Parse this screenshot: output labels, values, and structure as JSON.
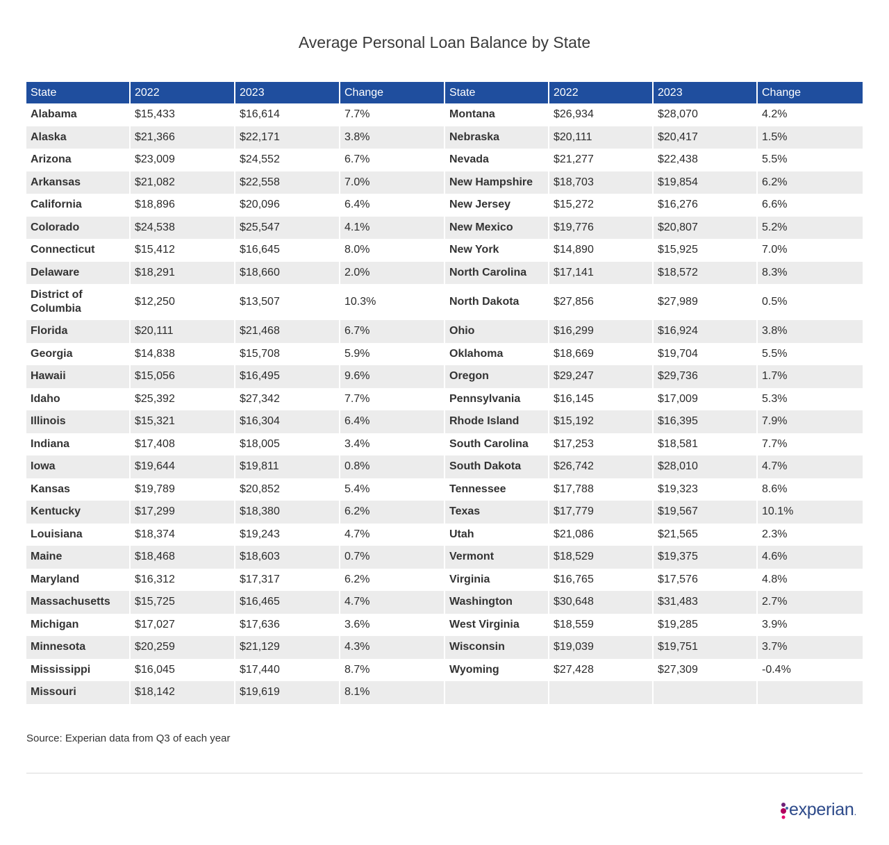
{
  "chart_data": {
    "type": "table",
    "title": "Average Personal Loan Balance by State",
    "columns": [
      "State",
      "2022",
      "2023",
      "Change"
    ],
    "left_rows": [
      [
        "Alabama",
        "$15,433",
        "$16,614",
        "7.7%"
      ],
      [
        "Alaska",
        "$21,366",
        "$22,171",
        "3.8%"
      ],
      [
        "Arizona",
        "$23,009",
        "$24,552",
        "6.7%"
      ],
      [
        "Arkansas",
        "$21,082",
        "$22,558",
        "7.0%"
      ],
      [
        "California",
        "$18,896",
        "$20,096",
        "6.4%"
      ],
      [
        "Colorado",
        "$24,538",
        "$25,547",
        "4.1%"
      ],
      [
        "Connecticut",
        "$15,412",
        "$16,645",
        "8.0%"
      ],
      [
        "Delaware",
        "$18,291",
        "$18,660",
        "2.0%"
      ],
      [
        "District of Columbia",
        "$12,250",
        "$13,507",
        "10.3%"
      ],
      [
        "Florida",
        "$20,111",
        "$21,468",
        "6.7%"
      ],
      [
        "Georgia",
        "$14,838",
        "$15,708",
        "5.9%"
      ],
      [
        "Hawaii",
        "$15,056",
        "$16,495",
        "9.6%"
      ],
      [
        "Idaho",
        "$25,392",
        "$27,342",
        "7.7%"
      ],
      [
        "Illinois",
        "$15,321",
        "$16,304",
        "6.4%"
      ],
      [
        "Indiana",
        "$17,408",
        "$18,005",
        "3.4%"
      ],
      [
        "Iowa",
        "$19,644",
        "$19,811",
        "0.8%"
      ],
      [
        "Kansas",
        "$19,789",
        "$20,852",
        "5.4%"
      ],
      [
        "Kentucky",
        "$17,299",
        "$18,380",
        "6.2%"
      ],
      [
        "Louisiana",
        "$18,374",
        "$19,243",
        "4.7%"
      ],
      [
        "Maine",
        "$18,468",
        "$18,603",
        "0.7%"
      ],
      [
        "Maryland",
        "$16,312",
        "$17,317",
        "6.2%"
      ],
      [
        "Massachusetts",
        "$15,725",
        "$16,465",
        "4.7%"
      ],
      [
        "Michigan",
        "$17,027",
        "$17,636",
        "3.6%"
      ],
      [
        "Minnesota",
        "$20,259",
        "$21,129",
        "4.3%"
      ],
      [
        "Mississippi",
        "$16,045",
        "$17,440",
        "8.7%"
      ],
      [
        "Missouri",
        "$18,142",
        "$19,619",
        "8.1%"
      ]
    ],
    "right_rows": [
      [
        "Montana",
        "$26,934",
        "$28,070",
        "4.2%"
      ],
      [
        "Nebraska",
        "$20,111",
        "$20,417",
        "1.5%"
      ],
      [
        "Nevada",
        "$21,277",
        "$22,438",
        "5.5%"
      ],
      [
        "New Hampshire",
        "$18,703",
        "$19,854",
        "6.2%"
      ],
      [
        "New Jersey",
        "$15,272",
        "$16,276",
        "6.6%"
      ],
      [
        "New Mexico",
        "$19,776",
        "$20,807",
        "5.2%"
      ],
      [
        "New York",
        "$14,890",
        "$15,925",
        "7.0%"
      ],
      [
        "North Carolina",
        "$17,141",
        "$18,572",
        "8.3%"
      ],
      [
        "North Dakota",
        "$27,856",
        "$27,989",
        "0.5%"
      ],
      [
        "Ohio",
        "$16,299",
        "$16,924",
        "3.8%"
      ],
      [
        "Oklahoma",
        "$18,669",
        "$19,704",
        "5.5%"
      ],
      [
        "Oregon",
        "$29,247",
        "$29,736",
        "1.7%"
      ],
      [
        "Pennsylvania",
        "$16,145",
        "$17,009",
        "5.3%"
      ],
      [
        "Rhode Island",
        "$15,192",
        "$16,395",
        "7.9%"
      ],
      [
        "South Carolina",
        "$17,253",
        "$18,581",
        "7.7%"
      ],
      [
        "South Dakota",
        "$26,742",
        "$28,010",
        "4.7%"
      ],
      [
        "Tennessee",
        "$17,788",
        "$19,323",
        "8.6%"
      ],
      [
        "Texas",
        "$17,779",
        "$19,567",
        "10.1%"
      ],
      [
        "Utah",
        "$21,086",
        "$21,565",
        "2.3%"
      ],
      [
        "Vermont",
        "$18,529",
        "$19,375",
        "4.6%"
      ],
      [
        "Virginia",
        "$16,765",
        "$17,576",
        "4.8%"
      ],
      [
        "Washington",
        "$30,648",
        "$31,483",
        "2.7%"
      ],
      [
        "West Virginia",
        "$18,559",
        "$19,285",
        "3.9%"
      ],
      [
        "Wisconsin",
        "$19,039",
        "$19,751",
        "3.7%"
      ],
      [
        "Wyoming",
        "$27,428",
        "$27,309",
        "-0.4%"
      ],
      [
        "",
        "",
        "",
        ""
      ]
    ],
    "source": "Source: Experian data from Q3 of each year"
  },
  "brand": {
    "logo_text": "experian",
    "logo_suffix": ".",
    "header_color": "#1f4e9e",
    "logo_color": "#2d4a8a",
    "dot_colors": [
      "#6d2077",
      "#b1005d",
      "#426da9",
      "#e5006d"
    ]
  }
}
